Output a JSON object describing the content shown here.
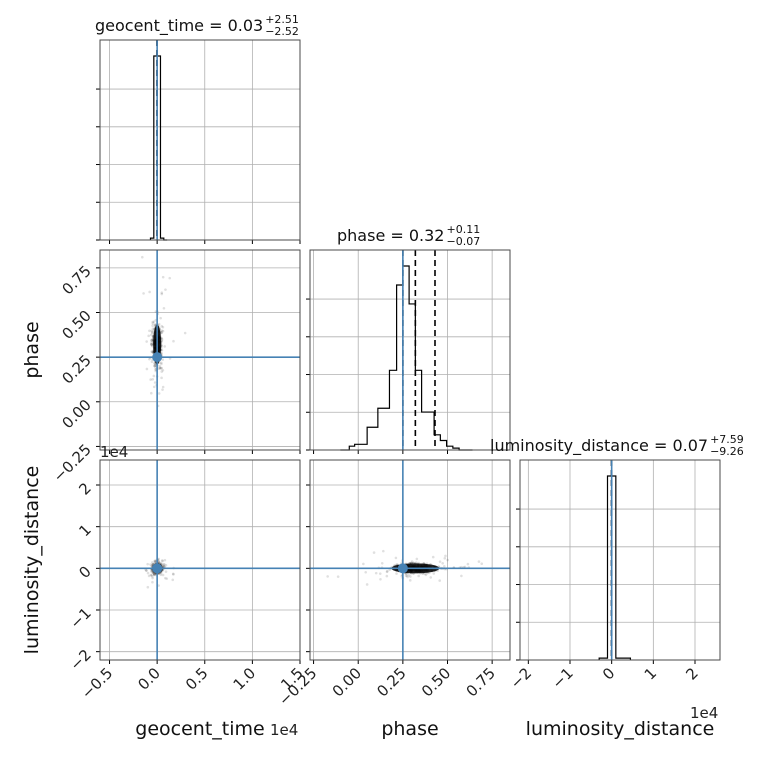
{
  "chart_data": {
    "type": "corner",
    "parameters": [
      "geocent_time",
      "phase",
      "luminosity_distance"
    ],
    "axis_labels": {
      "geocent_time": "geocent_time",
      "phase": "phase",
      "luminosity_distance": "luminosity_distance"
    },
    "offset_text": {
      "geocent_time_x": "1e4",
      "luminosity_distance_x": "1e4",
      "luminosity_distance_y": "1e4"
    },
    "titles": [
      {
        "param": "geocent_time",
        "name": "geocent_time",
        "median": "0.03",
        "plus": "+2.51",
        "minus": "−2.52"
      },
      {
        "param": "phase",
        "name": "phase",
        "median": "0.32",
        "plus": "+0.11",
        "minus": "−0.07"
      },
      {
        "param": "luminosity_distance",
        "name": "luminosity_distance",
        "median": "0.07",
        "plus": "+7.59",
        "minus": "−9.26"
      }
    ],
    "ranges": {
      "geocent_time": [
        -0.6,
        1.5
      ],
      "phase": [
        -0.27,
        0.85
      ],
      "luminosity_distance": [
        -2.2,
        2.6
      ]
    },
    "ticks": {
      "geocent_time": {
        "values": [
          -0.5,
          0.0,
          0.5,
          1.0,
          1.5
        ],
        "labels": [
          "−0.5",
          "0.0",
          "0.5",
          "1.0",
          "1.5"
        ]
      },
      "phase": {
        "values": [
          -0.25,
          0.0,
          0.25,
          0.5,
          0.75
        ],
        "labels": [
          "−0.25",
          "0.00",
          "0.25",
          "0.50",
          "0.75"
        ]
      },
      "luminosity_distance": {
        "values": [
          -2,
          -1,
          0,
          1,
          2
        ],
        "labels": [
          "−2",
          "−1",
          "0",
          "1",
          "2"
        ]
      }
    },
    "truths": {
      "geocent_time": 0.0,
      "phase": 0.25,
      "luminosity_distance": 0.0
    },
    "quantiles": {
      "geocent_time": [
        0.0,
        0.0,
        0.0
      ],
      "phase": [
        0.25,
        0.32,
        0.43
      ],
      "luminosity_distance": [
        0.0,
        0.0,
        0.0
      ]
    },
    "histograms": {
      "geocent_time": {
        "edges": [
          -0.07,
          -0.035,
          0.0,
          0.035,
          0.07,
          0.105
        ],
        "counts": [
          0.01,
          1.0,
          1.0,
          0.01,
          0.0
        ]
      },
      "phase": {
        "edges": [
          -0.1,
          -0.05,
          -0.02,
          0.05,
          0.11,
          0.175,
          0.215,
          0.25,
          0.285,
          0.32,
          0.355,
          0.39,
          0.425,
          0.46,
          0.495,
          0.53,
          0.565,
          0.6,
          0.64
        ],
        "counts": [
          0.0,
          0.02,
          0.03,
          0.12,
          0.22,
          0.42,
          0.87,
          0.97,
          0.77,
          0.42,
          0.2,
          0.2,
          0.08,
          0.05,
          0.02,
          0.01,
          0.0,
          0.0
        ]
      },
      "luminosity_distance": {
        "edges": [
          -0.3,
          -0.1,
          0.0,
          0.1,
          0.45
        ],
        "counts": [
          0.01,
          1.0,
          1.0,
          0.01
        ]
      }
    },
    "grid": true
  }
}
